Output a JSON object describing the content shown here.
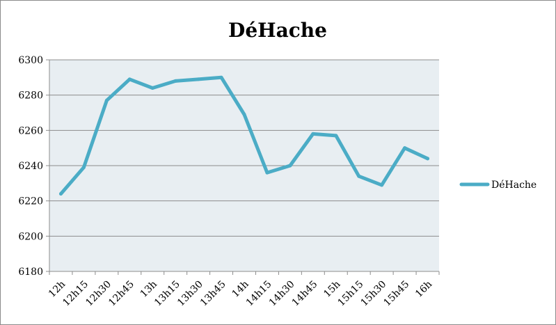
{
  "chart_data": {
    "type": "line",
    "title": "DéHache",
    "xlabel": "",
    "ylabel": "",
    "categories": [
      "12h",
      "12h15",
      "12h30",
      "12h45",
      "13h",
      "13h15",
      "13h30",
      "13h45",
      "14h",
      "14h15",
      "14h30",
      "14h45",
      "15h",
      "15h15",
      "15h30",
      "15h45",
      "16h"
    ],
    "series": [
      {
        "name": "DéHache",
        "values": [
          6224,
          6239,
          6277,
          6289,
          6284,
          6288,
          6289,
          6290,
          6269,
          6236,
          6240,
          6258,
          6257,
          6234,
          6229,
          6250,
          6244
        ],
        "color": "#4BACC6"
      }
    ],
    "ylim": [
      6180,
      6300
    ],
    "yticks": [
      6180,
      6200,
      6220,
      6240,
      6260,
      6280,
      6300
    ],
    "grid": true,
    "legend": "right",
    "plot_background": "#E8EEF2",
    "gridline_color": "#8C8C8C"
  }
}
